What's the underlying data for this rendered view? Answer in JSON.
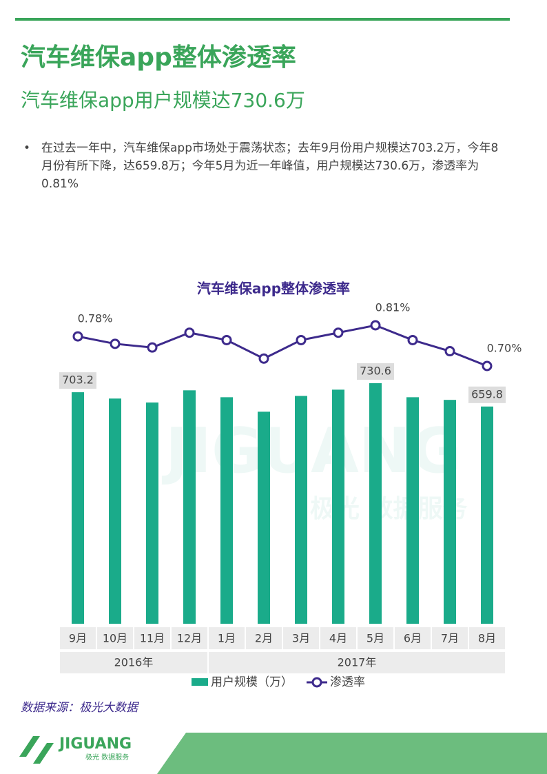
{
  "header": {
    "title": "汽车维保app整体渗透率",
    "subtitle": "汽车维保app用户规模达730.6万"
  },
  "bullets": [
    "在过去一年中，汽车维保app市场处于震荡状态；去年9月份用户规模达703.2万，今年8月份有所下降，达659.8万；今年5月为近一年峰值，用户规模达730.6万，渗透率为0.81%"
  ],
  "chart_data": {
    "type": "bar_line",
    "title": "汽车维保app整体渗透率",
    "groups": [
      {
        "label": "2016年",
        "categories": [
          "9月",
          "10月",
          "11月",
          "12月"
        ]
      },
      {
        "label": "2017年",
        "categories": [
          "1月",
          "2月",
          "3月",
          "4月",
          "5月",
          "6月",
          "7月",
          "8月"
        ]
      }
    ],
    "series": [
      {
        "name": "用户规模（万）",
        "type": "bar",
        "color": "#1aab8a",
        "values": [
          703.2,
          684,
          672,
          709,
          688,
          644,
          692,
          711,
          730.6,
          688,
          680,
          659.8
        ],
        "value_labels": [
          "703.2",
          null,
          null,
          null,
          null,
          null,
          null,
          null,
          "730.6",
          null,
          null,
          "659.8"
        ]
      },
      {
        "name": "渗透率",
        "type": "line",
        "color": "#3d2a8c",
        "values": [
          0.78,
          0.76,
          0.75,
          0.79,
          0.77,
          0.72,
          0.77,
          0.79,
          0.81,
          0.77,
          0.74,
          0.7
        ],
        "value_labels": [
          "0.78%",
          null,
          null,
          null,
          null,
          null,
          null,
          null,
          "0.81%",
          null,
          null,
          "0.70%"
        ]
      }
    ],
    "watermark": [
      "JIGUANG",
      "极光 数据服务"
    ]
  },
  "source": "数据来源：极光大数据",
  "footer": {
    "logo": "JIGUANG",
    "logo_sub": "极光 数据服务"
  }
}
